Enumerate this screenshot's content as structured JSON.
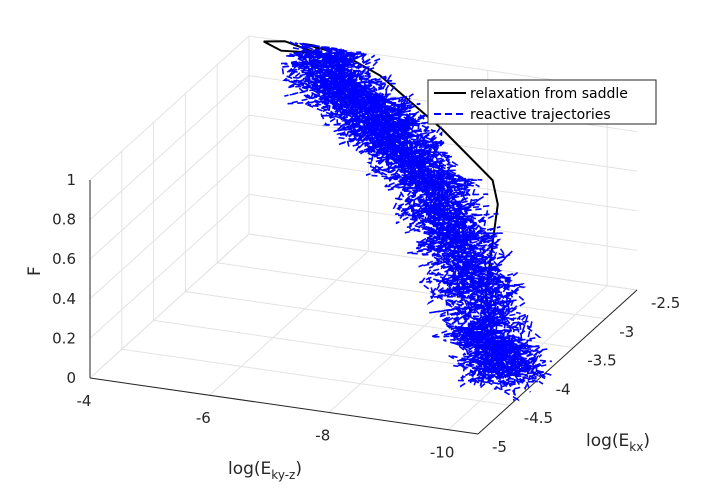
{
  "chart_data": {
    "type": "line3d",
    "title": "",
    "xlabel_base": "log(E",
    "xlabel_sub": "ky-z",
    "xlabel_close": ")",
    "ylabel_base": "log(E",
    "ylabel_sub": "kx",
    "ylabel_close": ")",
    "zlabel": "F",
    "xlim": [
      -10.5,
      -4
    ],
    "ylim": [
      -5,
      -2.5
    ],
    "zlim": [
      0,
      1
    ],
    "x_ticks": [
      "-4",
      "-6",
      "-8",
      "-10"
    ],
    "y_ticks": [
      "-5",
      "-4.5",
      "-4",
      "-3.5",
      "-3",
      "-2.5"
    ],
    "z_ticks": [
      "0",
      "0.2",
      "0.4",
      "0.6",
      "0.8",
      "1"
    ],
    "grid": true,
    "legend_position": "top-right",
    "series": [
      {
        "name": "relaxation from saddle",
        "style": "solid",
        "color": "#000000",
        "points": [
          {
            "x": -10.1,
            "y": -4.05,
            "z": 0.0
          },
          {
            "x": -9.9,
            "y": -4.0,
            "z": 0.02
          },
          {
            "x": -9.6,
            "y": -3.9,
            "z": 0.05
          },
          {
            "x": -9.3,
            "y": -3.75,
            "z": 0.3
          },
          {
            "x": -9.0,
            "y": -3.35,
            "z": 0.45
          },
          {
            "x": -8.7,
            "y": -3.0,
            "z": 0.5
          },
          {
            "x": -8.4,
            "y": -2.8,
            "z": 0.55
          },
          {
            "x": -7.4,
            "y": -2.65,
            "z": 0.72
          },
          {
            "x": -6.3,
            "y": -2.6,
            "z": 0.93
          },
          {
            "x": -5.8,
            "y": -2.55,
            "z": 0.97
          },
          {
            "x": -5.2,
            "y": -2.6,
            "z": 1.0
          },
          {
            "x": -4.6,
            "y": -2.5,
            "z": 1.0
          },
          {
            "x": -4.3,
            "y": -2.55,
            "z": 1.0
          },
          {
            "x": -4.7,
            "y": -2.65,
            "z": 1.0
          },
          {
            "x": -5.3,
            "y": -2.6,
            "z": 1.0
          },
          {
            "x": -5.1,
            "y": -2.5,
            "z": 1.0
          },
          {
            "x": -4.9,
            "y": -2.5,
            "z": 1.0
          },
          {
            "x": -5.4,
            "y": -2.55,
            "z": 1.0
          }
        ]
      },
      {
        "name": "reactive trajectories",
        "style": "dashed",
        "color": "#0000ff",
        "points": [
          {
            "x": -5.2,
            "y": -2.55,
            "z": 1.0
          },
          {
            "x": -5.6,
            "y": -2.75,
            "z": 0.95
          },
          {
            "x": -6.1,
            "y": -2.85,
            "z": 0.9
          },
          {
            "x": -6.6,
            "y": -2.95,
            "z": 0.84
          },
          {
            "x": -7.0,
            "y": -3.05,
            "z": 0.78
          },
          {
            "x": -7.4,
            "y": -3.15,
            "z": 0.72
          },
          {
            "x": -7.9,
            "y": -3.3,
            "z": 0.64
          },
          {
            "x": -8.3,
            "y": -3.45,
            "z": 0.55
          },
          {
            "x": -8.7,
            "y": -3.6,
            "z": 0.45
          },
          {
            "x": -9.1,
            "y": -3.8,
            "z": 0.32
          },
          {
            "x": -9.5,
            "y": -3.95,
            "z": 0.2
          },
          {
            "x": -9.8,
            "y": -4.05,
            "z": 0.1
          },
          {
            "x": -10.1,
            "y": -4.15,
            "z": 0.02
          }
        ]
      }
    ]
  }
}
